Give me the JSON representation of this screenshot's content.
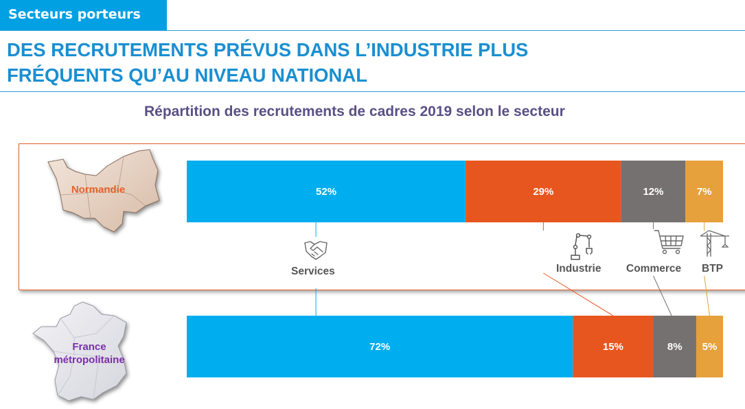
{
  "header": {
    "tag": "Secteurs porteurs",
    "headline_line1": "DES RECRUTEMENTS PRÉVUS DANS L’INDUSTRIE PLUS",
    "headline_line2": "FRÉQUENTS QU’AU NIVEAU NATIONAL"
  },
  "regions": {
    "normandie": "Normandie",
    "france_line1": "France",
    "france_line2": "métropolitaine"
  },
  "icons": [
    "handshake-icon",
    "robot-arm-icon",
    "shopping-cart-icon",
    "crane-icon"
  ],
  "colors": {
    "services": "#00aeef",
    "industrie": "#e8561f",
    "commerce": "#767171",
    "btp": "#e6a13c",
    "title_blue": "#1a8fd1",
    "subtitle_purple": "#5a4f86",
    "normandie_label": "#e2622d",
    "france_label": "#7a2fa6"
  },
  "chart_data": {
    "type": "bar",
    "orientation": "horizontal-stacked-100",
    "title": "Répartition des recrutements de cadres 2019 selon le secteur",
    "categories": [
      "Normandie",
      "France métropolitaine"
    ],
    "series": [
      {
        "name": "Services",
        "values": [
          52,
          72
        ],
        "labels": [
          "52%",
          "72%"
        ]
      },
      {
        "name": "Industrie",
        "values": [
          29,
          15
        ],
        "labels": [
          "29%",
          "15%"
        ]
      },
      {
        "name": "Commerce",
        "values": [
          12,
          8
        ],
        "labels": [
          "12%",
          "8%"
        ]
      },
      {
        "name": "BTP",
        "values": [
          7,
          5
        ],
        "labels": [
          "7%",
          "5%"
        ]
      }
    ],
    "xlim": [
      0,
      100
    ],
    "grid": false
  }
}
